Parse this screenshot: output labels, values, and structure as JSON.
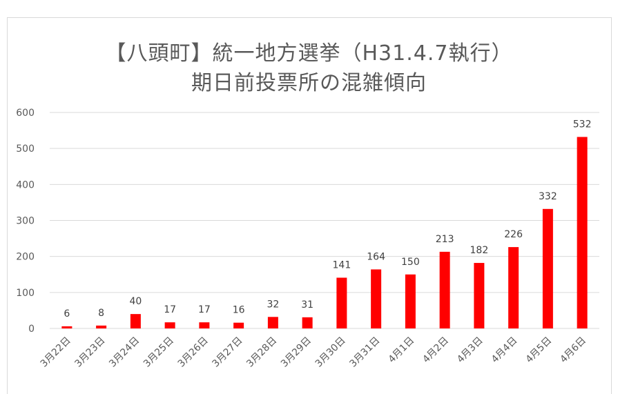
{
  "chart_data": {
    "type": "bar",
    "title_line1": "【八頭町】統一地方選挙（H31.4.7執行）",
    "title_line2": "期日前投票所の混雑傾向",
    "categories": [
      "3月22日",
      "3月23日",
      "3月24日",
      "3月25日",
      "3月26日",
      "3月27日",
      "3月28日",
      "3月29日",
      "3月30日",
      "3月31日",
      "4月1日",
      "4月2日",
      "4月3日",
      "4月4日",
      "4月5日",
      "4月6日"
    ],
    "values": [
      6,
      8,
      40,
      17,
      17,
      16,
      32,
      31,
      141,
      164,
      150,
      213,
      182,
      226,
      332,
      532
    ],
    "ylim": [
      0,
      600
    ],
    "yticks": [
      "0",
      "100",
      "200",
      "300",
      "400",
      "500",
      "600"
    ],
    "grid": true,
    "bar_color": "#ff0000",
    "gridline_color": "#d9d9d9"
  }
}
